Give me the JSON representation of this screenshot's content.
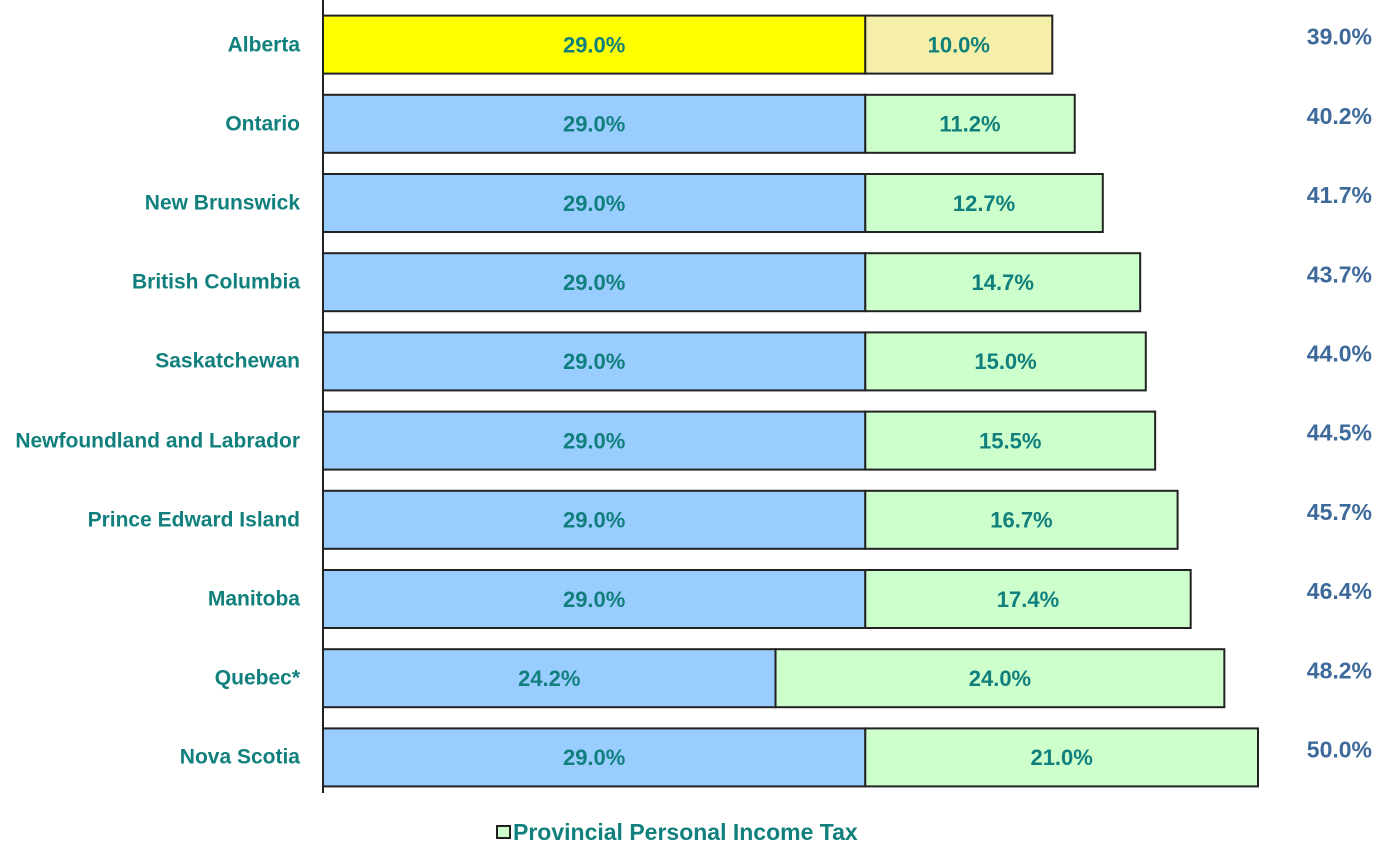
{
  "chart_data": {
    "type": "stacked-bar-horizontal",
    "categories": [
      "Alberta",
      "Ontario",
      "New Brunswick",
      "British Columbia",
      "Saskatchewan",
      "Newfoundland and Labrador",
      "Prince Edward Island",
      "Manitoba",
      "Quebec*",
      "Nova Scotia"
    ],
    "series": [
      {
        "colors": [
          "#ffff00",
          "#99ccff",
          "#99ccff",
          "#99ccff",
          "#99ccff",
          "#99ccff",
          "#99ccff",
          "#99ccff",
          "#99ccff",
          "#99ccff"
        ],
        "values": [
          29.0,
          29.0,
          29.0,
          29.0,
          29.0,
          29.0,
          29.0,
          29.0,
          24.2,
          29.0
        ],
        "value_labels": [
          "29.0%",
          "29.0%",
          "29.0%",
          "29.0%",
          "29.0%",
          "29.0%",
          "29.0%",
          "29.0%",
          "24.2%",
          "29.0%"
        ]
      },
      {
        "name": "Provincial Personal Income Tax",
        "color": "#ccffcc",
        "colors": [
          "#f5efaa",
          "#ccffcc",
          "#ccffcc",
          "#ccffcc",
          "#ccffcc",
          "#ccffcc",
          "#ccffcc",
          "#ccffcc",
          "#ccffcc",
          "#ccffcc"
        ],
        "values": [
          10.0,
          11.2,
          12.7,
          14.7,
          15.0,
          15.5,
          16.7,
          17.4,
          24.0,
          21.0
        ],
        "value_labels": [
          "10.0%",
          "11.2%",
          "12.7%",
          "14.7%",
          "15.0%",
          "15.5%",
          "16.7%",
          "17.4%",
          "24.0%",
          "21.0%"
        ]
      }
    ],
    "totals": [
      39.0,
      40.2,
      41.7,
      43.7,
      44.0,
      44.5,
      45.7,
      46.4,
      48.2,
      50.0
    ],
    "total_labels": [
      "39.0%",
      "40.2%",
      "41.7%",
      "43.7%",
      "44.0%",
      "44.5%",
      "45.7%",
      "46.4%",
      "48.2%",
      "50.0%"
    ],
    "xlim": [
      0,
      50
    ]
  }
}
